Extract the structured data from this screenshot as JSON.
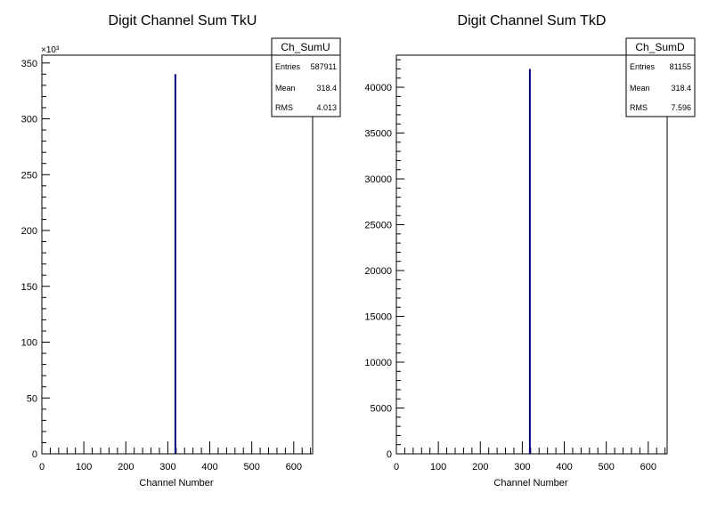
{
  "chart_data": [
    {
      "type": "histogram",
      "title": "Digit Channel Sum TkU",
      "xlabel": "Channel Number",
      "ylabel": "",
      "xlim": [
        0,
        645
      ],
      "ylim": [
        0,
        357000
      ],
      "x_ticks": [
        "0",
        "100",
        "200",
        "300",
        "400",
        "500",
        "600"
      ],
      "y_ticks": [
        "0",
        "50",
        "100",
        "150",
        "200",
        "250",
        "300",
        "350"
      ],
      "y_multiplier": "×10³",
      "bins": [
        {
          "x": 318,
          "value": 340000
        }
      ],
      "line_color": "#000080",
      "stats": {
        "name": "Ch_SumU",
        "rows": [
          {
            "label": "Entries",
            "value": "587911"
          },
          {
            "label": "Mean",
            "value": "318.4"
          },
          {
            "label": "RMS",
            "value": "4.013"
          }
        ]
      }
    },
    {
      "type": "histogram",
      "title": "Digit Channel Sum TkD",
      "xlabel": "Channel Number",
      "ylabel": "",
      "xlim": [
        0,
        645
      ],
      "ylim": [
        0,
        43500
      ],
      "x_ticks": [
        "0",
        "100",
        "200",
        "300",
        "400",
        "500",
        "600"
      ],
      "y_ticks": [
        "0",
        "5000",
        "10000",
        "15000",
        "20000",
        "25000",
        "30000",
        "35000",
        "40000"
      ],
      "bins": [
        {
          "x": 318,
          "value": 42000
        }
      ],
      "line_color": "#000080",
      "stats": {
        "name": "Ch_SumD",
        "rows": [
          {
            "label": "Entries",
            "value": "81155"
          },
          {
            "label": "Mean",
            "value": "318.4"
          },
          {
            "label": "RMS",
            "value": "7.596"
          }
        ]
      }
    }
  ]
}
